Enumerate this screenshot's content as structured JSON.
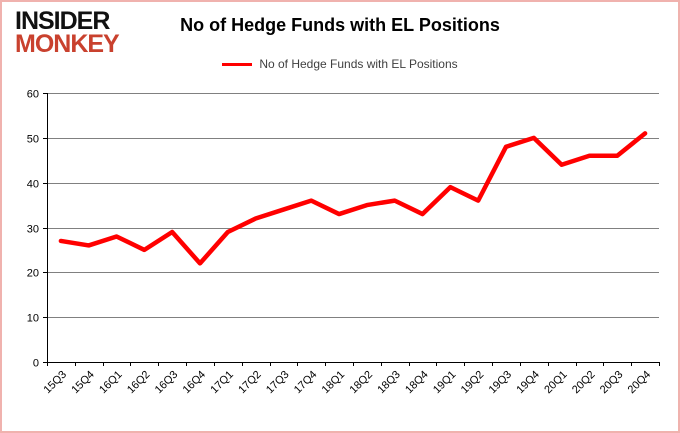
{
  "logo": {
    "line1": "INSIDER",
    "line2": "MONKEY"
  },
  "header": {
    "title": "No of Hedge Funds with EL Positions"
  },
  "legend": {
    "label": "No of Hedge Funds with EL Positions"
  },
  "chart_data": {
    "type": "line",
    "title": "No of Hedge Funds with EL Positions",
    "categories": [
      "15Q3",
      "15Q4",
      "16Q1",
      "16Q2",
      "16Q3",
      "16Q4",
      "17Q1",
      "17Q2",
      "17Q3",
      "17Q4",
      "18Q1",
      "18Q2",
      "18Q3",
      "18Q4",
      "19Q1",
      "19Q2",
      "19Q3",
      "19Q4",
      "20Q1",
      "20Q2",
      "20Q3",
      "20Q4"
    ],
    "values": [
      27,
      26,
      28,
      25,
      29,
      22,
      29,
      32,
      34,
      36,
      33,
      35,
      36,
      33,
      39,
      36,
      48,
      50,
      44,
      46,
      46,
      51
    ],
    "xlabel": "",
    "ylabel": "",
    "ylim": [
      0,
      60
    ],
    "ytick_step": 10,
    "ytick_labels": [
      "0",
      "10",
      "20",
      "30",
      "40",
      "50",
      "60"
    ],
    "grid": true,
    "legend_position": "top",
    "line_color": "#ff0000",
    "gridline_color": "#808080",
    "axis_color": "#000000",
    "tick_label_color": "#000000"
  },
  "colors": {
    "logo_red": "#c9412e",
    "border_pink": "#f0b2ae",
    "background": "#ffffff"
  }
}
